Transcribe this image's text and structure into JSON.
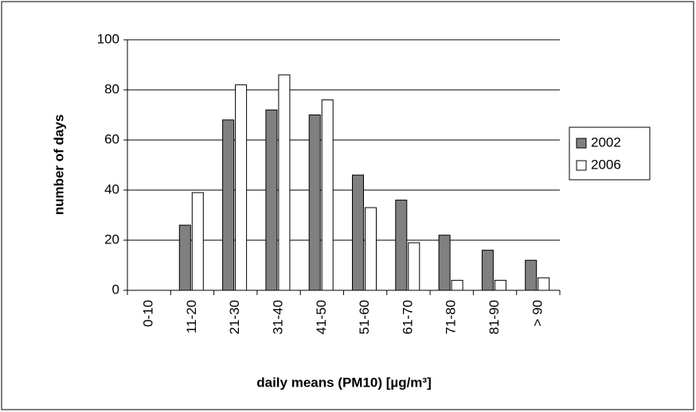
{
  "chart_data": {
    "type": "bar",
    "x_label": "daily means (PM10)  [µg/m³]",
    "y_label": "number of days",
    "categories": [
      "0-10",
      "11-20",
      "21-30",
      "31-40",
      "41-50",
      "51-60",
      "61-70",
      "71-80",
      "81-90",
      "> 90"
    ],
    "series": [
      {
        "name": "2002",
        "color": "#808080",
        "values": [
          0,
          26,
          68,
          72,
          70,
          46,
          36,
          22,
          16,
          12
        ]
      },
      {
        "name": "2006",
        "color": "#ffffff",
        "values": [
          0,
          39,
          82,
          86,
          76,
          33,
          19,
          4,
          4,
          5
        ]
      }
    ],
    "ylim": [
      0,
      100
    ],
    "yticks": [
      0,
      20,
      40,
      60,
      80,
      100
    ],
    "grid": true,
    "legend": "right"
  }
}
